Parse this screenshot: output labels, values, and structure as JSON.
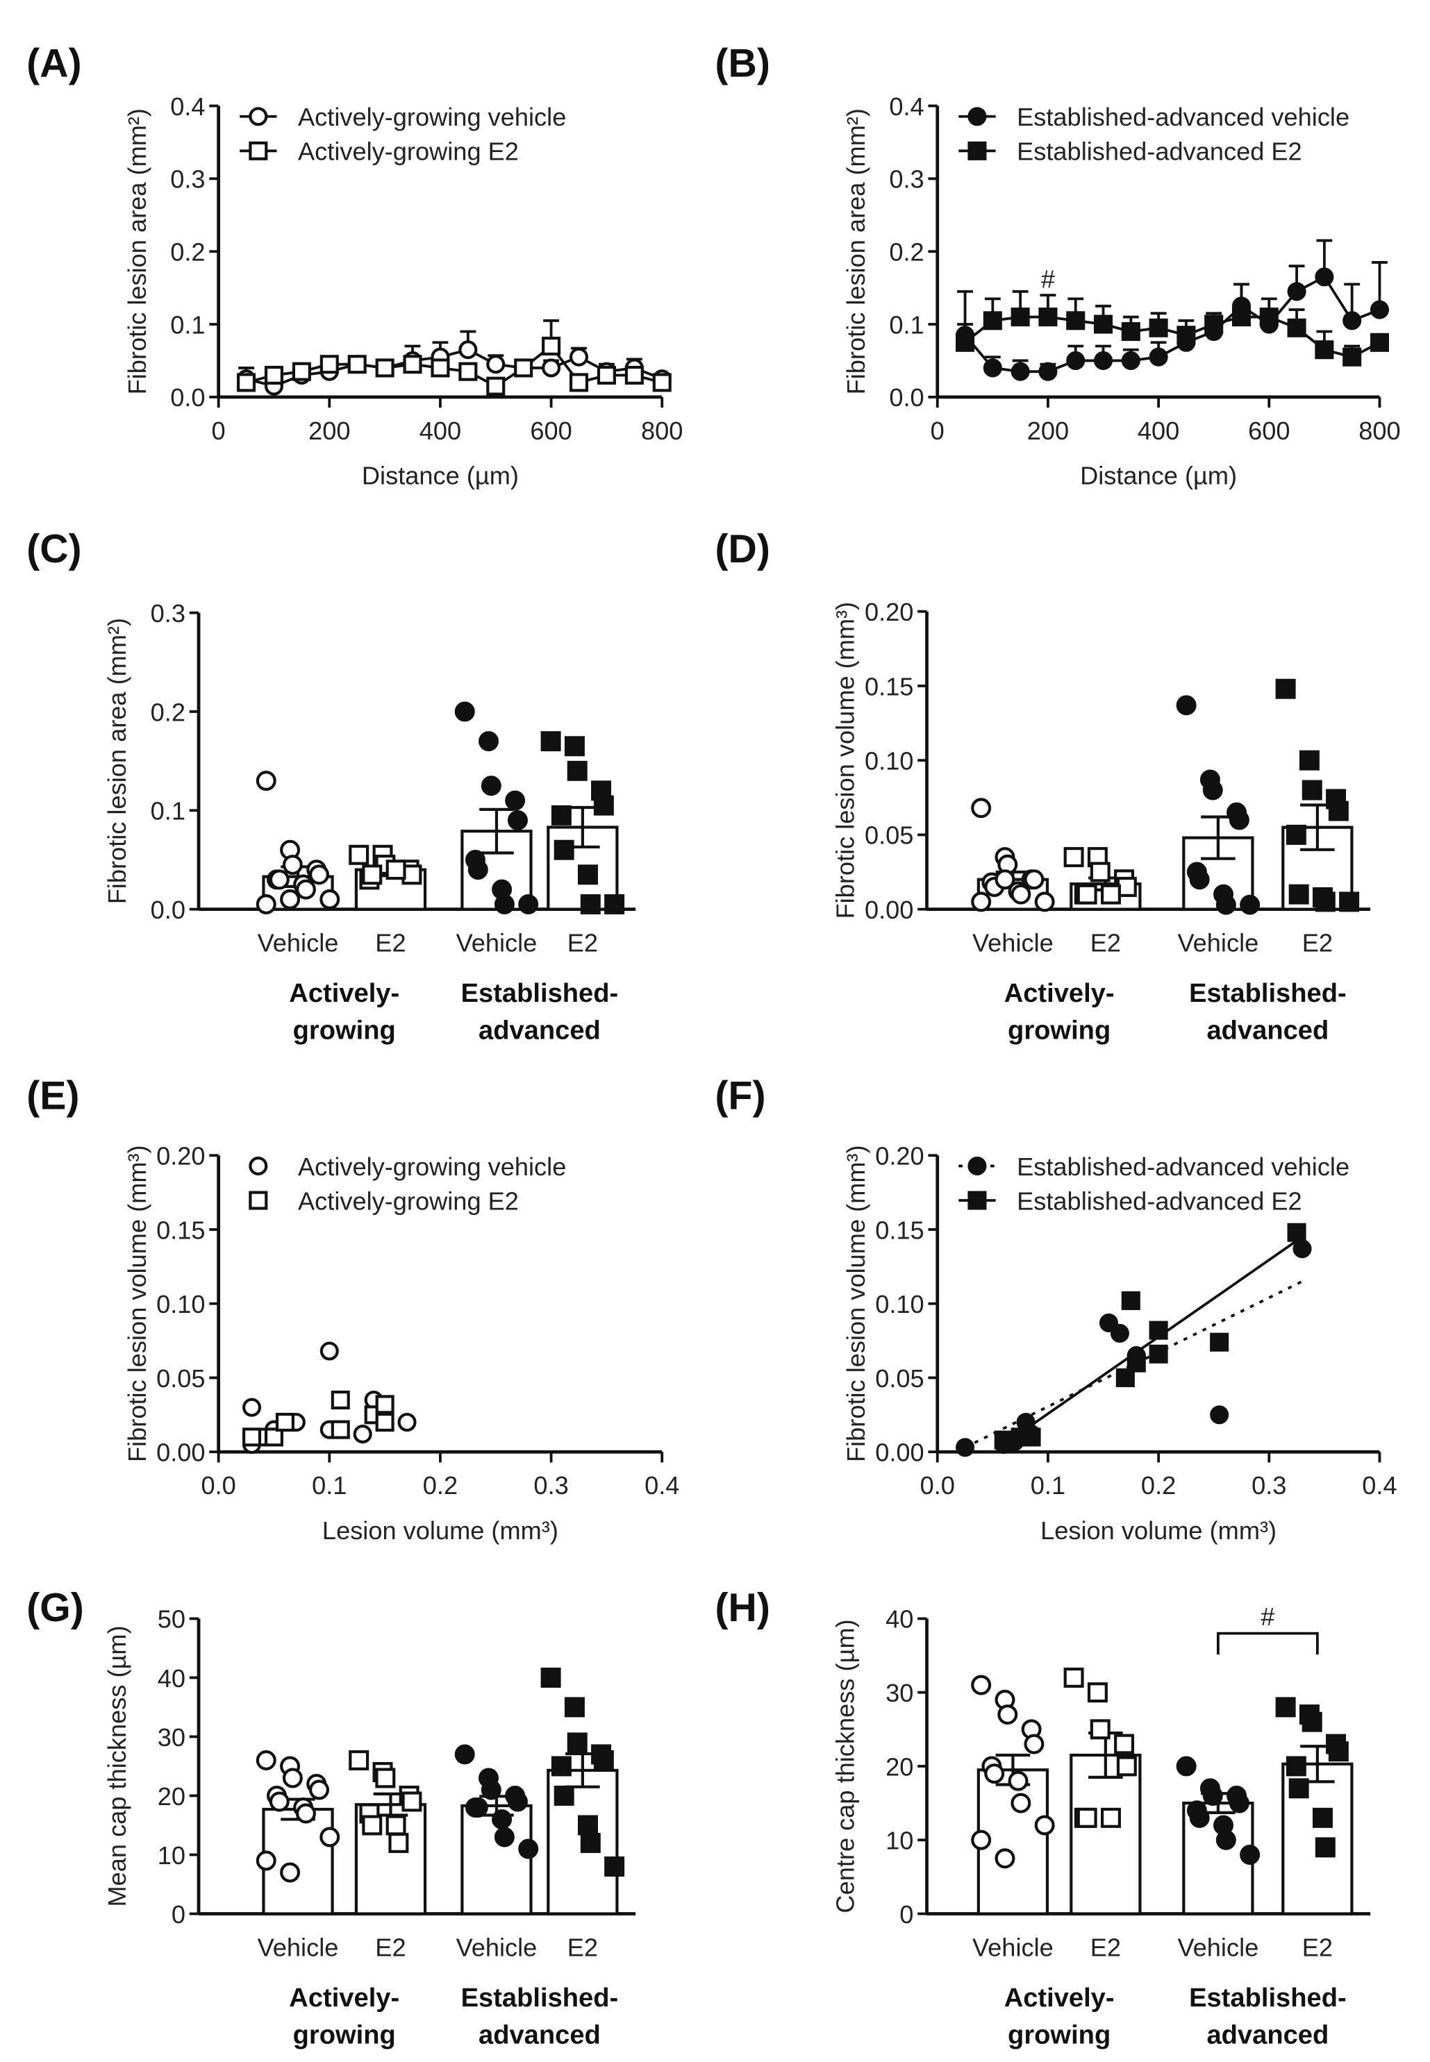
{
  "chart_data": [
    {
      "panel": "(A)",
      "type": "line",
      "xlabel": "Distance (µm)",
      "ylabel": "Fibrotic lesion area (mm²)",
      "xlim": [
        0,
        800
      ],
      "ylim": [
        0,
        0.4
      ],
      "xticks": [
        0,
        200,
        400,
        600,
        800
      ],
      "yticks": [
        "0.0",
        "0.1",
        "0.2",
        "0.3",
        "0.4"
      ],
      "legend": "top-left",
      "x": [
        50,
        100,
        150,
        200,
        250,
        300,
        350,
        400,
        450,
        500,
        550,
        600,
        650,
        700,
        750,
        800
      ],
      "series": [
        {
          "name": "Actively-growing vehicle",
          "marker": "open-circle",
          "values": [
            0.025,
            0.015,
            0.03,
            0.035,
            0.045,
            0.04,
            0.05,
            0.055,
            0.065,
            0.045,
            0.04,
            0.04,
            0.055,
            0.035,
            0.04,
            0.025
          ],
          "err": [
            0.015,
            0.015,
            0.01,
            0.008,
            0.005,
            0.008,
            0.02,
            0.02,
            0.025,
            0.012,
            0.01,
            0.01,
            0.012,
            0.01,
            0.012,
            0.005
          ]
        },
        {
          "name": "Actively-growing E2",
          "marker": "open-square",
          "values": [
            0.02,
            0.03,
            0.035,
            0.045,
            0.045,
            0.04,
            0.045,
            0.04,
            0.035,
            0.015,
            0.04,
            0.07,
            0.02,
            0.03,
            0.03,
            0.02
          ],
          "err": [
            0.01,
            0.008,
            0.008,
            0.005,
            0.005,
            0.008,
            0.01,
            0.01,
            0.008,
            0.005,
            0.008,
            0.035,
            0.008,
            0.008,
            0.008,
            0.006
          ]
        }
      ]
    },
    {
      "panel": "(B)",
      "type": "line",
      "xlabel": "Distance (µm)",
      "ylabel": "Fibrotic lesion area (mm²)",
      "xlim": [
        0,
        800
      ],
      "ylim": [
        0,
        0.4
      ],
      "xticks": [
        0,
        200,
        400,
        600,
        800
      ],
      "yticks": [
        "0.0",
        "0.1",
        "0.2",
        "0.3",
        "0.4"
      ],
      "legend": "top-left",
      "annotation": {
        "text": "#",
        "x": 200,
        "y": 0.15
      },
      "x": [
        50,
        100,
        150,
        200,
        250,
        300,
        350,
        400,
        450,
        500,
        550,
        600,
        650,
        700,
        750,
        800
      ],
      "series": [
        {
          "name": "Established-advanced vehicle",
          "marker": "filled-circle",
          "values": [
            0.085,
            0.04,
            0.035,
            0.035,
            0.05,
            0.05,
            0.05,
            0.055,
            0.075,
            0.09,
            0.125,
            0.1,
            0.145,
            0.165,
            0.105,
            0.12
          ],
          "err": [
            0.015,
            0.015,
            0.015,
            0.01,
            0.02,
            0.02,
            0.015,
            0.02,
            0.02,
            0.02,
            0.03,
            0.01,
            0.035,
            0.05,
            0.05,
            0.065
          ]
        },
        {
          "name": "Established-advanced E2",
          "marker": "filled-square",
          "values": [
            0.075,
            0.105,
            0.11,
            0.11,
            0.105,
            0.1,
            0.09,
            0.095,
            0.085,
            0.1,
            0.11,
            0.11,
            0.095,
            0.065,
            0.055,
            0.075
          ],
          "err": [
            0.07,
            0.03,
            0.035,
            0.03,
            0.03,
            0.025,
            0.02,
            0.02,
            0.02,
            0.015,
            0.045,
            0.025,
            0.025,
            0.025,
            0.015,
            0.0
          ]
        }
      ]
    },
    {
      "panel": "(C)",
      "type": "bar",
      "ylabel": "Fibrotic lesion area (mm²)",
      "ylim": [
        0,
        0.3
      ],
      "yticks": [
        "0.0",
        "0.1",
        "0.2",
        "0.3"
      ],
      "categories": [
        "Vehicle",
        "E2",
        "Vehicle",
        "E2"
      ],
      "groups": [
        "Actively-\ngrowing",
        "Established-\nadvanced"
      ],
      "bars": [
        {
          "mean": 0.033,
          "sem": 0.01,
          "marker": "open-circle",
          "points": [
            0.13,
            0.06,
            0.045,
            0.04,
            0.035,
            0.03,
            0.03,
            0.025,
            0.02,
            0.01,
            0.005,
            0.01
          ]
        },
        {
          "mean": 0.04,
          "sem": 0.006,
          "marker": "open-square",
          "points": [
            0.055,
            0.055,
            0.045,
            0.04,
            0.035,
            0.03,
            0.035,
            0.04
          ]
        },
        {
          "mean": 0.079,
          "sem": 0.022,
          "marker": "filled-circle",
          "points": [
            0.2,
            0.17,
            0.125,
            0.11,
            0.09,
            0.05,
            0.04,
            0.02,
            0.005,
            0.005
          ]
        },
        {
          "mean": 0.083,
          "sem": 0.02,
          "marker": "filled-square",
          "points": [
            0.17,
            0.165,
            0.14,
            0.12,
            0.105,
            0.095,
            0.06,
            0.035,
            0.005,
            0.005
          ]
        }
      ]
    },
    {
      "panel": "(D)",
      "type": "bar",
      "ylabel": "Fibrotic lesion volume (mm³)",
      "ylim": [
        0,
        0.2
      ],
      "yticks": [
        "0.00",
        "0.05",
        "0.10",
        "0.15",
        "0.20"
      ],
      "categories": [
        "Vehicle",
        "E2",
        "Vehicle",
        "E2"
      ],
      "groups": [
        "Actively-\ngrowing",
        "Established-\nadvanced"
      ],
      "bars": [
        {
          "mean": 0.02,
          "sem": 0.005,
          "marker": "open-circle",
          "points": [
            0.068,
            0.035,
            0.03,
            0.02,
            0.02,
            0.018,
            0.015,
            0.012,
            0.01,
            0.005,
            0.005,
            0.02
          ]
        },
        {
          "mean": 0.017,
          "sem": 0.004,
          "marker": "open-square",
          "points": [
            0.035,
            0.035,
            0.025,
            0.02,
            0.015,
            0.01,
            0.01,
            0.01
          ]
        },
        {
          "mean": 0.048,
          "sem": 0.014,
          "marker": "filled-circle",
          "points": [
            0.137,
            0.087,
            0.08,
            0.065,
            0.06,
            0.025,
            0.02,
            0.01,
            0.003,
            0.003
          ]
        },
        {
          "mean": 0.055,
          "sem": 0.015,
          "marker": "filled-square",
          "points": [
            0.148,
            0.1,
            0.08,
            0.074,
            0.066,
            0.05,
            0.01,
            0.008,
            0.005,
            0.005
          ]
        }
      ]
    },
    {
      "panel": "(E)",
      "type": "scatter",
      "xlabel": "Lesion volume (mm³)",
      "ylabel": "Fibrotic lesion volume (mm³)",
      "xlim": [
        0,
        0.4
      ],
      "ylim": [
        0,
        0.2
      ],
      "xticks": [
        "0.0",
        "0.1",
        "0.2",
        "0.3",
        "0.4"
      ],
      "yticks": [
        "0.00",
        "0.05",
        "0.10",
        "0.15",
        "0.20"
      ],
      "legend": "top-left",
      "series": [
        {
          "name": "Actively-growing vehicle",
          "marker": "open-circle",
          "points": [
            [
              0.03,
              0.03
            ],
            [
              0.03,
              0.005
            ],
            [
              0.04,
              0.01
            ],
            [
              0.05,
              0.015
            ],
            [
              0.06,
              0.02
            ],
            [
              0.07,
              0.02
            ],
            [
              0.1,
              0.068
            ],
            [
              0.1,
              0.015
            ],
            [
              0.13,
              0.012
            ],
            [
              0.14,
              0.035
            ],
            [
              0.15,
              0.02
            ],
            [
              0.17,
              0.02
            ]
          ]
        },
        {
          "name": "Actively-growing E2",
          "marker": "open-square",
          "points": [
            [
              0.03,
              0.01
            ],
            [
              0.05,
              0.01
            ],
            [
              0.06,
              0.02
            ],
            [
              0.11,
              0.035
            ],
            [
              0.11,
              0.015
            ],
            [
              0.14,
              0.025
            ],
            [
              0.15,
              0.032
            ],
            [
              0.15,
              0.02
            ]
          ]
        }
      ]
    },
    {
      "panel": "(F)",
      "type": "scatter",
      "xlabel": "Lesion volume (mm³)",
      "ylabel": "Fibrotic lesion volume (mm³)",
      "xlim": [
        0,
        0.4
      ],
      "ylim": [
        0,
        0.2
      ],
      "xticks": [
        "0.0",
        "0.1",
        "0.2",
        "0.3",
        "0.4"
      ],
      "yticks": [
        "0.00",
        "0.05",
        "0.10",
        "0.15",
        "0.20"
      ],
      "legend": "top-left",
      "series": [
        {
          "name": "Established-advanced vehicle",
          "marker": "filled-circle",
          "fit": "dotted",
          "fit_line": [
            [
              0.025,
              0.003
            ],
            [
              0.33,
              0.115
            ]
          ],
          "points": [
            [
              0.025,
              0.003
            ],
            [
              0.06,
              0.005
            ],
            [
              0.07,
              0.007
            ],
            [
              0.08,
              0.02
            ],
            [
              0.085,
              0.012
            ],
            [
              0.155,
              0.087
            ],
            [
              0.165,
              0.08
            ],
            [
              0.18,
              0.065
            ],
            [
              0.255,
              0.025
            ],
            [
              0.33,
              0.137
            ]
          ]
        },
        {
          "name": "Established-advanced E2",
          "marker": "filled-square",
          "fit": "solid",
          "fit_line": [
            [
              0.06,
              0.005
            ],
            [
              0.33,
              0.145
            ]
          ],
          "points": [
            [
              0.06,
              0.008
            ],
            [
              0.075,
              0.01
            ],
            [
              0.085,
              0.01
            ],
            [
              0.17,
              0.05
            ],
            [
              0.175,
              0.102
            ],
            [
              0.18,
              0.06
            ],
            [
              0.2,
              0.082
            ],
            [
              0.2,
              0.066
            ],
            [
              0.255,
              0.074
            ],
            [
              0.325,
              0.148
            ]
          ]
        }
      ]
    },
    {
      "panel": "(G)",
      "type": "bar",
      "ylabel": "Mean cap thickness (µm)",
      "ylim": [
        0,
        50
      ],
      "yticks": [
        "0",
        "10",
        "20",
        "30",
        "40",
        "50"
      ],
      "categories": [
        "Vehicle",
        "E2",
        "Vehicle",
        "E2"
      ],
      "groups": [
        "Actively-\ngrowing",
        "Established-\nadvanced"
      ],
      "bars": [
        {
          "mean": 17.7,
          "sem": 1.7,
          "marker": "open-circle",
          "points": [
            26,
            25,
            23,
            22,
            21,
            20,
            19,
            18,
            17,
            13,
            9,
            7
          ]
        },
        {
          "mean": 18.5,
          "sem": 1.8,
          "marker": "open-square",
          "points": [
            26,
            24,
            23,
            20,
            19,
            17,
            15,
            15,
            12
          ]
        },
        {
          "mean": 18.3,
          "sem": 1.6,
          "marker": "filled-circle",
          "points": [
            27,
            23,
            21,
            20,
            19,
            18,
            18,
            16,
            13,
            11
          ]
        },
        {
          "mean": 24.3,
          "sem": 2.8,
          "marker": "filled-square",
          "points": [
            40,
            35,
            29,
            27,
            26,
            25,
            20,
            15,
            12,
            8
          ]
        }
      ]
    },
    {
      "panel": "(H)",
      "type": "bar",
      "ylabel": "Centre cap thickness (µm)",
      "ylim": [
        0,
        40
      ],
      "yticks": [
        "0",
        "10",
        "20",
        "30",
        "40"
      ],
      "categories": [
        "Vehicle",
        "E2",
        "Vehicle",
        "E2"
      ],
      "groups": [
        "Actively-\ngrowing",
        "Established-\nadvanced"
      ],
      "annotation": {
        "text": "#",
        "between": [
          2,
          3
        ],
        "y": 38
      },
      "bars": [
        {
          "mean": 19.5,
          "sem": 2,
          "marker": "open-circle",
          "points": [
            31,
            29,
            27,
            25,
            23,
            20,
            19,
            18,
            15,
            12,
            10,
            7.5
          ]
        },
        {
          "mean": 21.5,
          "sem": 3,
          "marker": "open-square",
          "points": [
            32,
            30,
            25,
            23,
            20,
            13,
            13,
            13
          ]
        },
        {
          "mean": 15,
          "sem": 1.3,
          "marker": "filled-circle",
          "points": [
            20,
            17,
            16,
            16,
            15,
            14,
            13,
            12,
            10,
            8
          ]
        },
        {
          "mean": 20.3,
          "sem": 2.4,
          "marker": "filled-square",
          "points": [
            28,
            27,
            26,
            23,
            22,
            20,
            17,
            13,
            9
          ]
        }
      ]
    }
  ]
}
